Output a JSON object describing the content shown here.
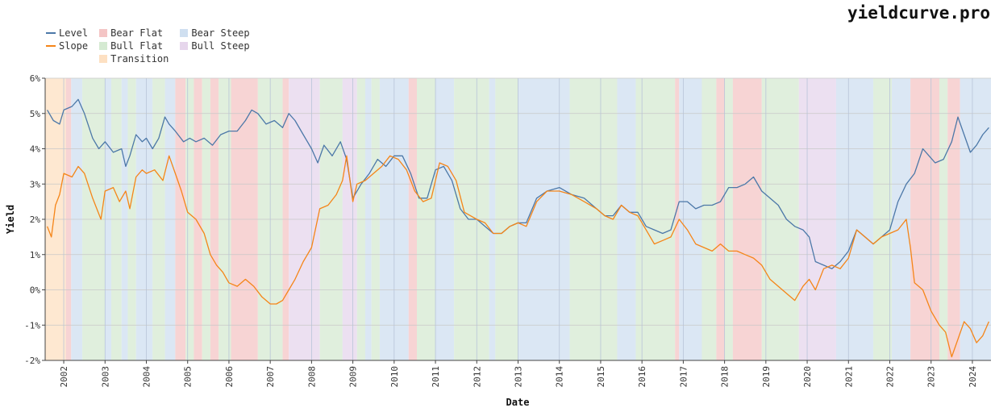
{
  "brand": "yieldcurve.pro",
  "legend": {
    "lines": [
      {
        "name": "Level",
        "color": "#4c78a8"
      },
      {
        "name": "Slope",
        "color": "#f58518"
      }
    ],
    "regimes": [
      {
        "name": "Bear Flat",
        "color": "#f4c5c5"
      },
      {
        "name": "Bull Flat",
        "color": "#d5ead2"
      },
      {
        "name": "Transition",
        "color": "#fde0c2"
      },
      {
        "name": "Bear Steep",
        "color": "#cfdff0"
      },
      {
        "name": "Bull Steep",
        "color": "#e6d6ec"
      }
    ]
  },
  "chart_data": {
    "type": "line",
    "xlabel": "Date",
    "ylabel": "Yield",
    "xlim": [
      2001.55,
      2024.45
    ],
    "ylim": [
      -2,
      6
    ],
    "y_ticks": [
      "-2%",
      "-1%",
      "0%",
      "1%",
      "2%",
      "3%",
      "4%",
      "5%",
      "6%"
    ],
    "x_ticks": [
      "2002",
      "2003",
      "2004",
      "2005",
      "2006",
      "2007",
      "2008",
      "2009",
      "2010",
      "2011",
      "2012",
      "2013",
      "2014",
      "2015",
      "2016",
      "2017",
      "2018",
      "2019",
      "2020",
      "2021",
      "2022",
      "2023",
      "2024"
    ],
    "grid": true,
    "legend_position": "top-left",
    "regimes": [
      {
        "start": 2001.55,
        "end": 2002.05,
        "regime": "Transition"
      },
      {
        "start": 2002.05,
        "end": 2002.18,
        "regime": "Bear Flat"
      },
      {
        "start": 2002.18,
        "end": 2002.45,
        "regime": "Bear Steep"
      },
      {
        "start": 2002.45,
        "end": 2003.0,
        "regime": "Bull Flat"
      },
      {
        "start": 2003.0,
        "end": 2003.15,
        "regime": "Bear Steep"
      },
      {
        "start": 2003.15,
        "end": 2003.4,
        "regime": "Bull Flat"
      },
      {
        "start": 2003.4,
        "end": 2003.55,
        "regime": "Bear Steep"
      },
      {
        "start": 2003.55,
        "end": 2003.75,
        "regime": "Bull Flat"
      },
      {
        "start": 2003.75,
        "end": 2004.15,
        "regime": "Bear Steep"
      },
      {
        "start": 2004.15,
        "end": 2004.45,
        "regime": "Bull Flat"
      },
      {
        "start": 2004.45,
        "end": 2004.7,
        "regime": "Bear Steep"
      },
      {
        "start": 2004.7,
        "end": 2004.95,
        "regime": "Bear Flat"
      },
      {
        "start": 2004.95,
        "end": 2005.15,
        "regime": "Bull Flat"
      },
      {
        "start": 2005.15,
        "end": 2005.35,
        "regime": "Bear Flat"
      },
      {
        "start": 2005.35,
        "end": 2005.55,
        "regime": "Bull Flat"
      },
      {
        "start": 2005.55,
        "end": 2005.75,
        "regime": "Bear Flat"
      },
      {
        "start": 2005.75,
        "end": 2006.05,
        "regime": "Bull Flat"
      },
      {
        "start": 2006.05,
        "end": 2006.7,
        "regime": "Bear Flat"
      },
      {
        "start": 2006.7,
        "end": 2007.3,
        "regime": "Bull Flat"
      },
      {
        "start": 2007.3,
        "end": 2007.45,
        "regime": "Bear Flat"
      },
      {
        "start": 2007.45,
        "end": 2008.2,
        "regime": "Bull Steep"
      },
      {
        "start": 2008.2,
        "end": 2008.75,
        "regime": "Bull Flat"
      },
      {
        "start": 2008.75,
        "end": 2009.1,
        "regime": "Bull Steep"
      },
      {
        "start": 2009.1,
        "end": 2009.3,
        "regime": "Bull Flat"
      },
      {
        "start": 2009.3,
        "end": 2009.45,
        "regime": "Bear Steep"
      },
      {
        "start": 2009.45,
        "end": 2009.65,
        "regime": "Bull Flat"
      },
      {
        "start": 2009.65,
        "end": 2010.35,
        "regime": "Bear Steep"
      },
      {
        "start": 2010.35,
        "end": 2010.55,
        "regime": "Bear Flat"
      },
      {
        "start": 2010.55,
        "end": 2011.0,
        "regime": "Bull Flat"
      },
      {
        "start": 2011.0,
        "end": 2011.45,
        "regime": "Bear Steep"
      },
      {
        "start": 2011.45,
        "end": 2012.3,
        "regime": "Bull Flat"
      },
      {
        "start": 2012.3,
        "end": 2012.45,
        "regime": "Bear Steep"
      },
      {
        "start": 2012.45,
        "end": 2013.0,
        "regime": "Bull Flat"
      },
      {
        "start": 2013.0,
        "end": 2014.25,
        "regime": "Bear Steep"
      },
      {
        "start": 2014.25,
        "end": 2015.4,
        "regime": "Bull Flat"
      },
      {
        "start": 2015.4,
        "end": 2015.85,
        "regime": "Bear Steep"
      },
      {
        "start": 2015.85,
        "end": 2016.8,
        "regime": "Bull Flat"
      },
      {
        "start": 2016.8,
        "end": 2016.9,
        "regime": "Bear Flat"
      },
      {
        "start": 2016.9,
        "end": 2017.45,
        "regime": "Bear Steep"
      },
      {
        "start": 2017.45,
        "end": 2017.8,
        "regime": "Bull Flat"
      },
      {
        "start": 2017.8,
        "end": 2018.0,
        "regime": "Bear Flat"
      },
      {
        "start": 2018.0,
        "end": 2018.2,
        "regime": "Bull Flat"
      },
      {
        "start": 2018.2,
        "end": 2018.9,
        "regime": "Bear Flat"
      },
      {
        "start": 2018.9,
        "end": 2019.8,
        "regime": "Bull Flat"
      },
      {
        "start": 2019.8,
        "end": 2020.7,
        "regime": "Bull Steep"
      },
      {
        "start": 2020.7,
        "end": 2021.6,
        "regime": "Bear Steep"
      },
      {
        "start": 2021.6,
        "end": 2022.05,
        "regime": "Bull Flat"
      },
      {
        "start": 2022.05,
        "end": 2022.5,
        "regime": "Bear Steep"
      },
      {
        "start": 2022.5,
        "end": 2023.2,
        "regime": "Bear Flat"
      },
      {
        "start": 2023.2,
        "end": 2023.4,
        "regime": "Bull Flat"
      },
      {
        "start": 2023.4,
        "end": 2023.7,
        "regime": "Bear Flat"
      },
      {
        "start": 2023.7,
        "end": 2024.45,
        "regime": "Bear Steep"
      }
    ],
    "series": [
      {
        "name": "Level",
        "color": "#4c78a8",
        "x": [
          2001.6,
          2001.75,
          2001.9,
          2002.0,
          2002.2,
          2002.35,
          2002.5,
          2002.7,
          2002.85,
          2003.0,
          2003.2,
          2003.4,
          2003.5,
          2003.6,
          2003.75,
          2003.9,
          2004.0,
          2004.15,
          2004.3,
          2004.45,
          2004.55,
          2004.7,
          2004.9,
          2005.05,
          2005.2,
          2005.4,
          2005.6,
          2005.8,
          2006.0,
          2006.2,
          2006.4,
          2006.55,
          2006.7,
          2006.9,
          2007.1,
          2007.3,
          2007.45,
          2007.6,
          2007.8,
          2008.0,
          2008.15,
          2008.3,
          2008.5,
          2008.7,
          2008.85,
          2009.0,
          2009.2,
          2009.4,
          2009.6,
          2009.8,
          2010.0,
          2010.2,
          2010.4,
          2010.6,
          2010.8,
          2011.0,
          2011.2,
          2011.4,
          2011.6,
          2011.8,
          2012.0,
          2012.2,
          2012.4,
          2012.6,
          2012.8,
          2013.0,
          2013.2,
          2013.45,
          2013.7,
          2014.0,
          2014.3,
          2014.6,
          2014.9,
          2015.1,
          2015.3,
          2015.5,
          2015.7,
          2015.9,
          2016.1,
          2016.3,
          2016.5,
          2016.7,
          2016.9,
          2017.1,
          2017.3,
          2017.5,
          2017.7,
          2017.9,
          2018.1,
          2018.3,
          2018.5,
          2018.7,
          2018.9,
          2019.1,
          2019.3,
          2019.5,
          2019.7,
          2019.9,
          2020.05,
          2020.2,
          2020.4,
          2020.6,
          2020.8,
          2021.0,
          2021.2,
          2021.4,
          2021.6,
          2021.8,
          2022.0,
          2022.2,
          2022.4,
          2022.6,
          2022.8,
          2022.95,
          2023.1,
          2023.3,
          2023.5,
          2023.65,
          2023.8,
          2023.95,
          2024.1,
          2024.25,
          2024.4
        ],
        "values": [
          5.1,
          4.8,
          4.7,
          5.1,
          5.2,
          5.4,
          5.0,
          4.3,
          4.0,
          4.2,
          3.9,
          4.0,
          3.5,
          3.8,
          4.4,
          4.2,
          4.3,
          4.0,
          4.3,
          4.9,
          4.7,
          4.5,
          4.2,
          4.3,
          4.2,
          4.3,
          4.1,
          4.4,
          4.5,
          4.5,
          4.8,
          5.1,
          5.0,
          4.7,
          4.8,
          4.6,
          5.0,
          4.8,
          4.4,
          4.0,
          3.6,
          4.1,
          3.8,
          4.2,
          3.7,
          2.6,
          3.0,
          3.3,
          3.7,
          3.5,
          3.8,
          3.8,
          3.3,
          2.6,
          2.6,
          3.4,
          3.5,
          3.1,
          2.3,
          2.0,
          2.0,
          1.8,
          1.6,
          1.6,
          1.8,
          1.9,
          1.9,
          2.6,
          2.8,
          2.9,
          2.7,
          2.6,
          2.3,
          2.1,
          2.1,
          2.4,
          2.2,
          2.2,
          1.8,
          1.7,
          1.6,
          1.7,
          2.5,
          2.5,
          2.3,
          2.4,
          2.4,
          2.5,
          2.9,
          2.9,
          3.0,
          3.2,
          2.8,
          2.6,
          2.4,
          2.0,
          1.8,
          1.7,
          1.5,
          0.8,
          0.7,
          0.6,
          0.8,
          1.1,
          1.7,
          1.5,
          1.3,
          1.5,
          1.7,
          2.5,
          3.0,
          3.3,
          4.0,
          3.8,
          3.6,
          3.7,
          4.2,
          4.9,
          4.4,
          3.9,
          4.1,
          4.4,
          4.6
        ]
      },
      {
        "name": "Slope",
        "color": "#f58518",
        "x": [
          2001.6,
          2001.7,
          2001.8,
          2001.9,
          2002.0,
          2002.2,
          2002.35,
          2002.5,
          2002.7,
          2002.9,
          2003.0,
          2003.2,
          2003.35,
          2003.5,
          2003.6,
          2003.75,
          2003.9,
          2004.0,
          2004.2,
          2004.4,
          2004.55,
          2004.7,
          2004.85,
          2005.0,
          2005.2,
          2005.4,
          2005.55,
          2005.7,
          2005.85,
          2006.0,
          2006.2,
          2006.4,
          2006.6,
          2006.8,
          2007.0,
          2007.15,
          2007.3,
          2007.45,
          2007.6,
          2007.8,
          2008.0,
          2008.2,
          2008.4,
          2008.6,
          2008.75,
          2008.85,
          2009.0,
          2009.1,
          2009.3,
          2009.5,
          2009.7,
          2009.9,
          2010.1,
          2010.3,
          2010.5,
          2010.7,
          2010.9,
          2011.1,
          2011.3,
          2011.5,
          2011.7,
          2012.0,
          2012.2,
          2012.4,
          2012.6,
          2012.8,
          2013.0,
          2013.2,
          2013.45,
          2013.7,
          2014.0,
          2014.3,
          2014.6,
          2014.9,
          2015.1,
          2015.3,
          2015.5,
          2015.7,
          2015.9,
          2016.1,
          2016.3,
          2016.5,
          2016.7,
          2016.9,
          2017.1,
          2017.3,
          2017.5,
          2017.7,
          2017.9,
          2018.1,
          2018.3,
          2018.5,
          2018.7,
          2018.9,
          2019.1,
          2019.3,
          2019.5,
          2019.7,
          2019.9,
          2020.05,
          2020.2,
          2020.4,
          2020.6,
          2020.8,
          2021.0,
          2021.2,
          2021.4,
          2021.6,
          2021.8,
          2022.0,
          2022.2,
          2022.4,
          2022.5,
          2022.6,
          2022.8,
          2023.0,
          2023.2,
          2023.35,
          2023.5,
          2023.65,
          2023.8,
          2023.95,
          2024.1,
          2024.25,
          2024.4
        ],
        "values": [
          1.8,
          1.5,
          2.4,
          2.7,
          3.3,
          3.2,
          3.5,
          3.3,
          2.6,
          2.0,
          2.8,
          2.9,
          2.5,
          2.8,
          2.3,
          3.2,
          3.4,
          3.3,
          3.4,
          3.1,
          3.8,
          3.3,
          2.8,
          2.2,
          2.0,
          1.6,
          1.0,
          0.7,
          0.5,
          0.2,
          0.1,
          0.3,
          0.1,
          -0.2,
          -0.4,
          -0.4,
          -0.3,
          0.0,
          0.3,
          0.8,
          1.2,
          2.3,
          2.4,
          2.7,
          3.1,
          3.8,
          2.5,
          3.0,
          3.1,
          3.3,
          3.5,
          3.8,
          3.7,
          3.4,
          2.8,
          2.5,
          2.6,
          3.6,
          3.5,
          3.1,
          2.2,
          2.0,
          1.9,
          1.6,
          1.6,
          1.8,
          1.9,
          1.8,
          2.5,
          2.8,
          2.8,
          2.7,
          2.5,
          2.3,
          2.1,
          2.0,
          2.4,
          2.2,
          2.1,
          1.7,
          1.3,
          1.4,
          1.5,
          2.0,
          1.7,
          1.3,
          1.2,
          1.1,
          1.3,
          1.1,
          1.1,
          1.0,
          0.9,
          0.7,
          0.3,
          0.1,
          -0.1,
          -0.3,
          0.1,
          0.3,
          0.0,
          0.6,
          0.7,
          0.6,
          0.9,
          1.7,
          1.5,
          1.3,
          1.5,
          1.6,
          1.7,
          2.0,
          1.2,
          0.2,
          0.0,
          -0.6,
          -1.0,
          -1.2,
          -1.9,
          -1.4,
          -0.9,
          -1.1,
          -1.5,
          -1.3,
          -0.9
        ]
      }
    ]
  }
}
